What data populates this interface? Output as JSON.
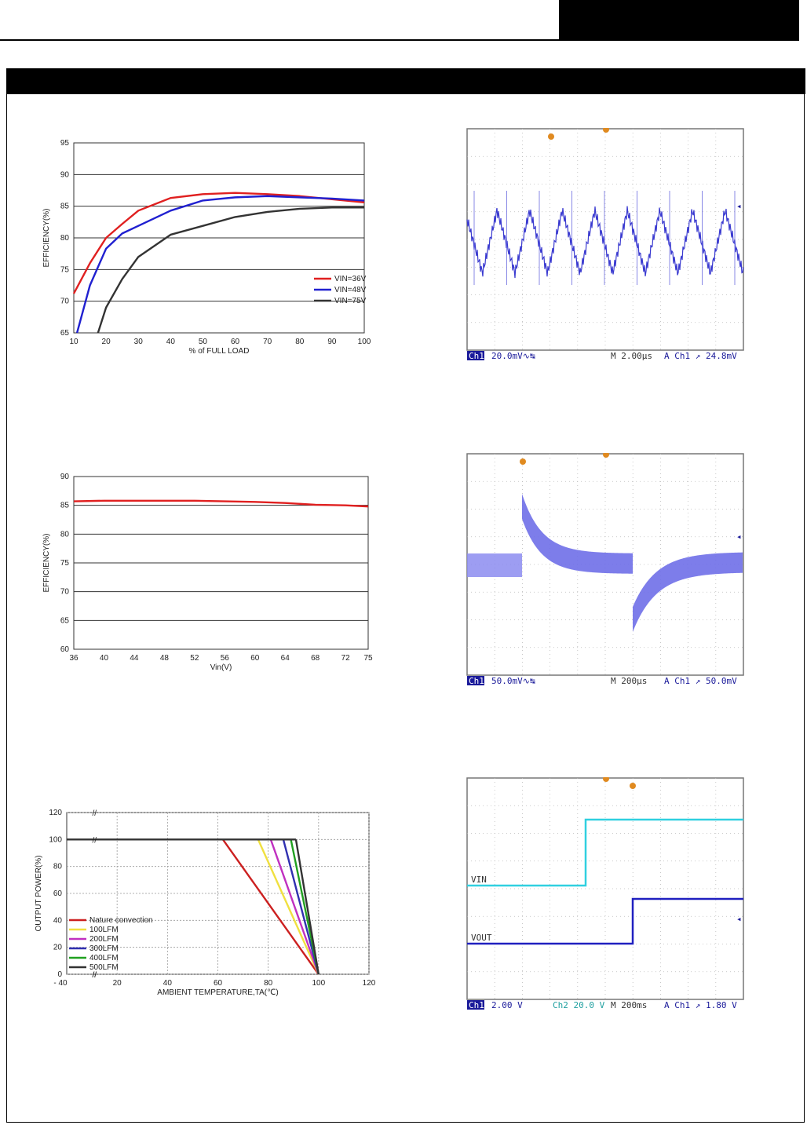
{
  "header": {
    "title": "",
    "section": ""
  },
  "charts": {
    "eff_load": {
      "ylabel": "EFFICIENCY(%)",
      "xlabel": "% of FULL LOAD",
      "legend": [
        "VIN=36V",
        "VIN=48V",
        "VIN=75V"
      ]
    },
    "eff_vin": {
      "ylabel": "EFFICIENCY(%)",
      "xlabel": "Vin(V)"
    },
    "derating": {
      "ylabel": "OUTPUT POWER(%)",
      "xlabel": "AMBIENT TEMPERATURE,TA(℃)",
      "xstart": "- 40",
      "legend": [
        "Nature convection",
        "100LFM",
        "200LFM",
        "300LFM",
        "400LFM",
        "500LFM"
      ]
    }
  },
  "chart_data": [
    {
      "type": "line",
      "xlabel": "% of FULL LOAD",
      "ylabel": "EFFICIENCY(%)",
      "xlim": [
        10,
        100
      ],
      "ylim": [
        65,
        95
      ],
      "xticks": [
        10,
        20,
        30,
        40,
        50,
        60,
        70,
        80,
        90,
        100
      ],
      "yticks": [
        65,
        70,
        75,
        80,
        85,
        90,
        95
      ],
      "grid": true,
      "legend_position": "lower-right",
      "series": [
        {
          "name": "VIN=36V",
          "color": "#e02020",
          "x": [
            10,
            15,
            20,
            25,
            30,
            40,
            50,
            60,
            70,
            80,
            90,
            100
          ],
          "y": [
            71.2,
            76,
            80,
            82.2,
            84.3,
            86.3,
            86.9,
            87.1,
            86.9,
            86.6,
            86.1,
            85.6
          ]
        },
        {
          "name": "VIN=48V",
          "color": "#2020d0",
          "x": [
            11,
            15,
            20,
            25,
            30,
            40,
            50,
            60,
            70,
            80,
            90,
            100
          ],
          "y": [
            65,
            72.5,
            78.3,
            80.7,
            81.9,
            84.3,
            85.9,
            86.4,
            86.6,
            86.4,
            86.2,
            85.9
          ]
        },
        {
          "name": "VIN=75V",
          "color": "#333333",
          "x": [
            17.5,
            20,
            25,
            30,
            40,
            50,
            60,
            70,
            80,
            90,
            100
          ],
          "y": [
            65,
            69,
            73.5,
            77,
            80.5,
            81.9,
            83.3,
            84.1,
            84.6,
            84.8,
            84.8
          ]
        }
      ]
    },
    {
      "type": "line",
      "xlabel": "Vin(V)",
      "ylabel": "EFFICIENCY(%)",
      "xlim": [
        36,
        75
      ],
      "ylim": [
        60,
        90
      ],
      "xticks": [
        36,
        40,
        44,
        48,
        52,
        56,
        60,
        64,
        68,
        72,
        75
      ],
      "yticks": [
        60,
        65,
        70,
        75,
        80,
        85,
        90
      ],
      "grid": true,
      "series": [
        {
          "name": "",
          "color": "#e02020",
          "x": [
            36,
            40,
            44,
            48,
            52,
            56,
            60,
            64,
            68,
            72,
            75
          ],
          "y": [
            85.7,
            85.8,
            85.8,
            85.8,
            85.8,
            85.7,
            85.6,
            85.4,
            85.1,
            85.0,
            84.8
          ]
        }
      ]
    },
    {
      "type": "line",
      "xlabel": "AMBIENT TEMPERATURE,TA(℃)",
      "ylabel": "OUTPUT POWER(%)",
      "xlim": [
        0,
        120
      ],
      "ylim": [
        0,
        120
      ],
      "xticks": [
        20,
        40,
        60,
        80,
        100,
        120
      ],
      "yticks": [
        0,
        20,
        40,
        60,
        80,
        100,
        120
      ],
      "grid": true,
      "legend_position": "left",
      "series": [
        {
          "name": "Nature convection",
          "color": "#cc2020",
          "x": [
            62,
            100
          ],
          "y": [
            100,
            0
          ]
        },
        {
          "name": "100LFM",
          "color": "#f0e040",
          "x": [
            76,
            100
          ],
          "y": [
            100,
            0
          ]
        },
        {
          "name": "200LFM",
          "color": "#c030c0",
          "x": [
            81,
            100
          ],
          "y": [
            100,
            0
          ]
        },
        {
          "name": "300LFM",
          "color": "#3030b0",
          "x": [
            86,
            100
          ],
          "y": [
            100,
            0
          ]
        },
        {
          "name": "400LFM",
          "color": "#20a020",
          "x": [
            89,
            100
          ],
          "y": [
            100,
            0
          ]
        },
        {
          "name": "500LFM",
          "color": "#333333",
          "x": [
            91,
            100
          ],
          "y": [
            100,
            0
          ]
        },
        {
          "name": "",
          "color": "#333333",
          "x": [
            0,
            91
          ],
          "y": [
            100,
            100
          ]
        }
      ]
    }
  ],
  "scopes": [
    {
      "ch": "Ch1",
      "scale": "20.0mV",
      "coupling": "∿↹",
      "time": "M 2.00µs",
      "trigger": "A  Ch1 ↗ 24.8mV"
    },
    {
      "ch": "Ch1",
      "scale": "50.0mV",
      "coupling": "∿↹",
      "time": "M 200µs",
      "trigger": "A  Ch1 ↗ 50.0mV"
    },
    {
      "ch": "Ch1",
      "scale": "2.00 V",
      "ch2": "Ch2  20.0 V",
      "time": "M 200ms",
      "trigger": "A  Ch1 ↗  1.80 V",
      "vin": "VIN",
      "vout": "VOUT"
    }
  ]
}
